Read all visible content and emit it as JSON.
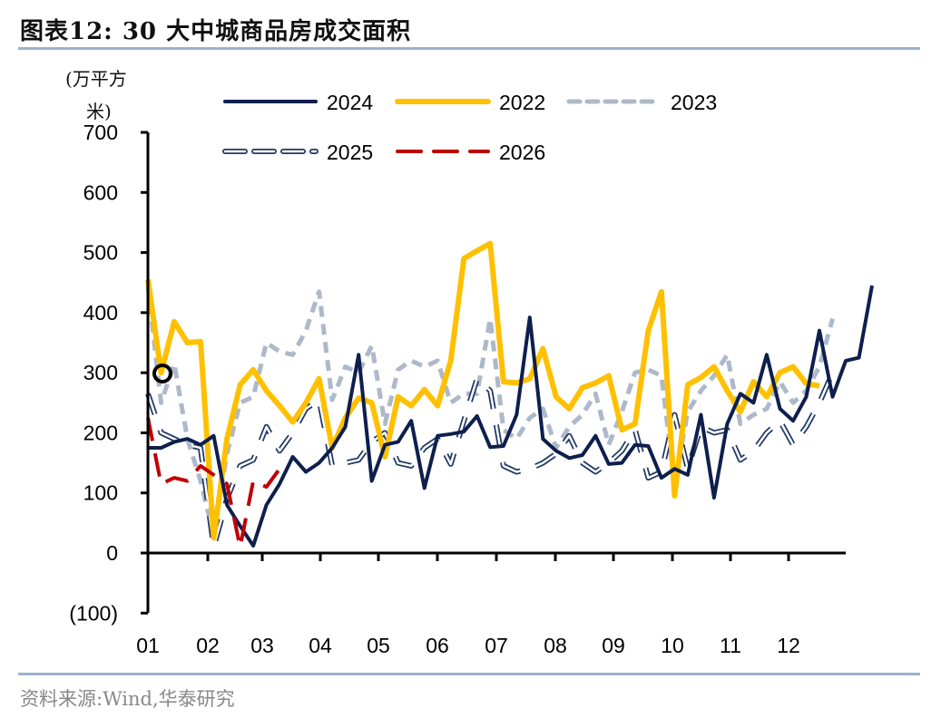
{
  "title": "图表12:  30 大中城商品房成交面积",
  "source": "资料来源:Wind,华泰研究",
  "chart_data": {
    "type": "line",
    "title": "30 大中城商品房成交面积",
    "ylabel_line1": "(万平方",
    "ylabel_line2": "米)",
    "ylim": [
      -100,
      700
    ],
    "yticks": [
      -100,
      0,
      100,
      200,
      300,
      400,
      500,
      600,
      700
    ],
    "ytick_labels": [
      "(100)",
      "0",
      "100",
      "200",
      "300",
      "400",
      "500",
      "600",
      "700"
    ],
    "xtick_labels": [
      "01",
      "02",
      "03",
      "04",
      "05",
      "06",
      "07",
      "08",
      "09",
      "10",
      "11",
      "12"
    ],
    "x_points_per_year": 52,
    "legend_position": "top",
    "series": [
      {
        "name": "2024",
        "color": "#0e1f4d",
        "style": "solid",
        "values": [
          175,
          175,
          185,
          190,
          180,
          195,
          80,
          45,
          12,
          80,
          115,
          160,
          135,
          150,
          175,
          210,
          330,
          120,
          180,
          185,
          220,
          108,
          195,
          198,
          202,
          228,
          176,
          178,
          230,
          392,
          190,
          170,
          158,
          163,
          195,
          148,
          150,
          180,
          178,
          125,
          140,
          130,
          230,
          92,
          215,
          265,
          250,
          330,
          240,
          220,
          260,
          370,
          260,
          320,
          325,
          445
        ]
      },
      {
        "name": "2022",
        "color": "#ffc000",
        "style": "solid",
        "values": [
          455,
          300,
          385,
          350,
          352,
          25,
          190,
          280,
          305,
          270,
          245,
          218,
          250,
          290,
          175,
          225,
          258,
          250,
          160,
          260,
          245,
          272,
          245,
          320,
          490,
          503,
          515,
          285,
          283,
          290,
          340,
          260,
          240,
          275,
          283,
          295,
          205,
          215,
          370,
          435,
          95,
          280,
          292,
          310,
          270,
          235,
          285,
          260,
          300,
          310,
          282,
          278
        ]
      },
      {
        "name": "2023",
        "color": "#adb9ca",
        "style": "dashed",
        "values": [
          445,
          250,
          315,
          190,
          120,
          30,
          165,
          250,
          260,
          350,
          335,
          330,
          370,
          435,
          255,
          310,
          300,
          345,
          215,
          305,
          320,
          310,
          320,
          250,
          265,
          265,
          390,
          205,
          190,
          225,
          240,
          175,
          210,
          230,
          265,
          180,
          235,
          300,
          305,
          295,
          115,
          235,
          270,
          295,
          330,
          215,
          230,
          240,
          285,
          250,
          270,
          310,
          390
        ]
      },
      {
        "name": "2025",
        "color": "#1f3864",
        "style": "long-dash-outline",
        "values": [
          265,
          200,
          190,
          180,
          175,
          10,
          90,
          145,
          155,
          210,
          170,
          200,
          240,
          255,
          145,
          150,
          155,
          185,
          200,
          150,
          145,
          175,
          190,
          148,
          220,
          290,
          270,
          145,
          135,
          140,
          150,
          165,
          195,
          150,
          135,
          150,
          170,
          205,
          125,
          135,
          230,
          140,
          210,
          200,
          205,
          155,
          170,
          200,
          220,
          180,
          210,
          250,
          300
        ]
      },
      {
        "name": "2026",
        "color": "#c00000",
        "style": "dashed",
        "values": [
          225,
          115,
          125,
          120,
          145,
          130,
          115,
          10,
          120,
          110,
          140
        ]
      }
    ],
    "annotation": "circle-marker"
  }
}
